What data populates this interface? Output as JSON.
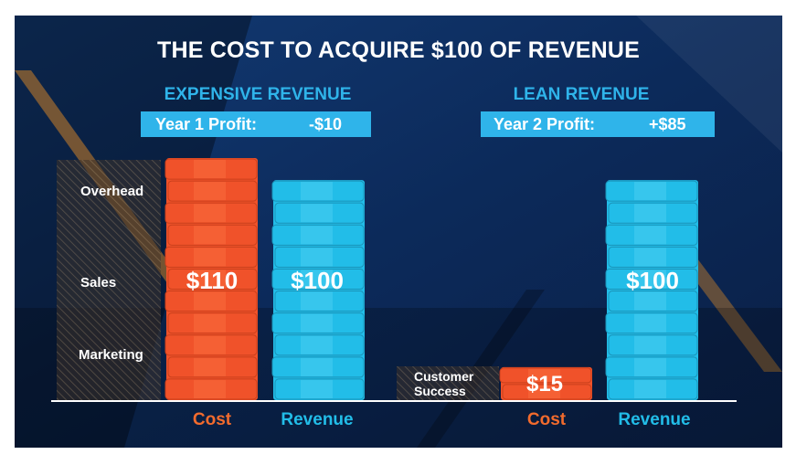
{
  "slide": {
    "title": "THE COST TO ACQUIRE $100 OF REVENUE",
    "left_heading": "EXPENSIVE REVENUE",
    "right_heading": "LEAN REVENUE",
    "left_profit_label": "Year 1 Profit:",
    "left_profit_value": "-$10",
    "right_profit_label": "Year 2 Profit:",
    "right_profit_value": "+$85",
    "colors": {
      "cost": "#f0522a",
      "revenue": "#22bde8",
      "heading": "#2fb4ea",
      "cost_label": "#f26b2d"
    }
  },
  "chart_data": [
    {
      "type": "bar",
      "title": "EXPENSIVE REVENUE",
      "categories": [
        "Cost",
        "Revenue"
      ],
      "values": [
        110,
        100
      ],
      "data_labels": [
        "$110",
        "$100"
      ],
      "segment_labels": [
        "Overhead",
        "Sales",
        "Marketing"
      ],
      "ylim": [
        0,
        110
      ]
    },
    {
      "type": "bar",
      "title": "LEAN REVENUE",
      "categories": [
        "Cost",
        "Revenue"
      ],
      "values": [
        15,
        100
      ],
      "data_labels": [
        "$15",
        "$100"
      ],
      "segment_labels": [
        "Customer Success"
      ],
      "ylim": [
        0,
        110
      ]
    }
  ]
}
